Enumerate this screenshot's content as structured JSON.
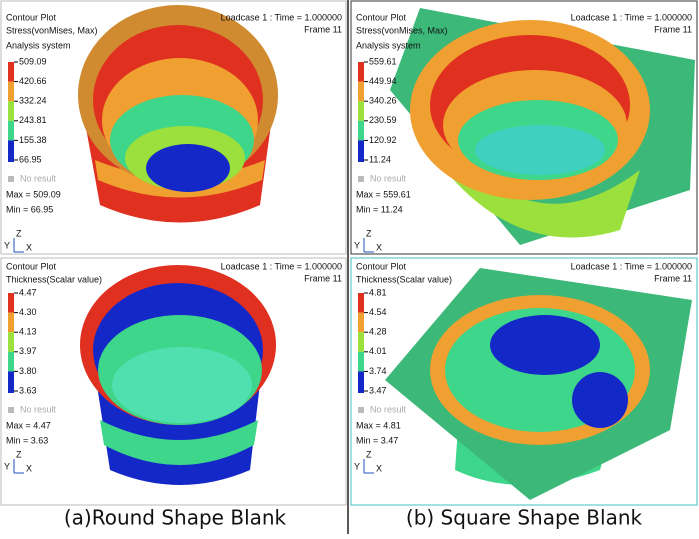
{
  "panels": [
    {
      "title": "Contour Plot",
      "quantity": "Stress(vonMises, Max)",
      "system": "Analysis system",
      "loadcase": "Loadcase 1 : Time = 1.000000",
      "frame": "Frame 11",
      "legend": [
        "509.09",
        "420.66",
        "332.24",
        "243.81",
        "155.38",
        "66.95"
      ],
      "no_result": "No result",
      "max": "Max = 509.09",
      "min": "Min = 66.95",
      "axes": [
        "Z",
        "Y",
        "X"
      ]
    },
    {
      "title": "Contour Plot",
      "quantity": "Stress(vonMises, Max)",
      "system": "Analysis system",
      "loadcase": "Loadcase 1 : Time = 1.000000",
      "frame": "Frame 11",
      "legend": [
        "559.61",
        "449.94",
        "340.26",
        "230.59",
        "120.92",
        "11.24"
      ],
      "no_result": "No result",
      "max": "Max = 559.61",
      "min": "Min = 11.24",
      "axes": [
        "Z",
        "Y",
        "X"
      ]
    },
    {
      "title": "Contour Plot",
      "quantity": "Thickness(Scalar value)",
      "loadcase": "Loadcase 1 : Time = 1.000000",
      "frame": "Frame 11",
      "legend": [
        "4.47",
        "4.30",
        "4.13",
        "3.97",
        "3.80",
        "3.63"
      ],
      "no_result": "No result",
      "max": "Max = 4.47",
      "min": "Min = 3.63",
      "axes": [
        "Z",
        "Y",
        "X"
      ]
    },
    {
      "title": "Contour Plot",
      "quantity": "Thickness(Scalar value)",
      "loadcase": "Loadcase 1 : Time = 1.000000",
      "frame": "Frame 11",
      "legend": [
        "4.81",
        "4.54",
        "4.28",
        "4.01",
        "3.74",
        "3.47"
      ],
      "no_result": "No result",
      "max": "Max = 4.81",
      "min": "Min = 3.47",
      "axes": [
        "Z",
        "Y",
        "X"
      ]
    }
  ],
  "captions": [
    "(a)Round Shape Blank",
    "(b) Square Shape Blank"
  ]
}
